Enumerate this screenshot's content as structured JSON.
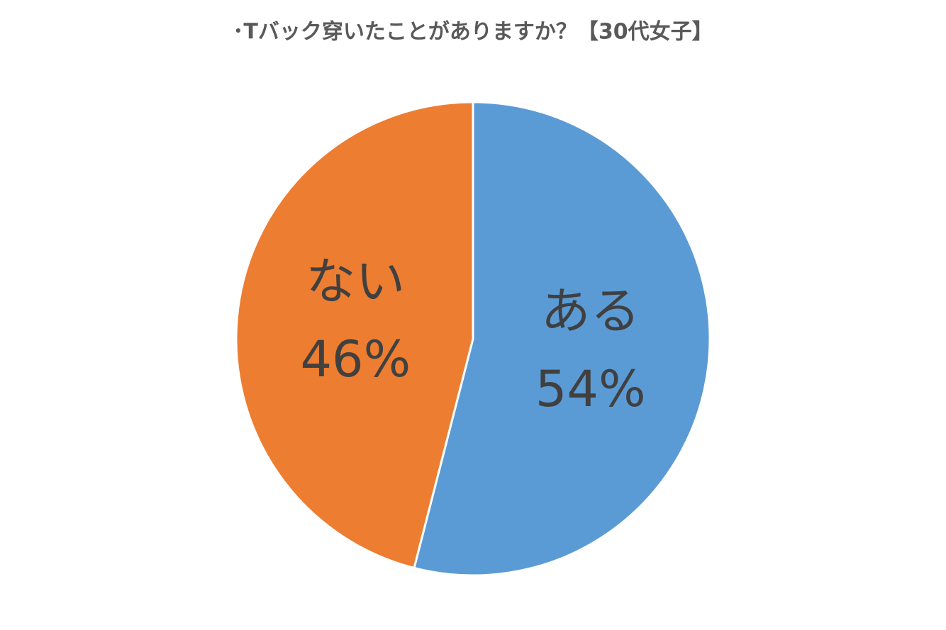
{
  "chart_data": {
    "type": "pie",
    "title": "･Tバック穿いたことがありますか？【30代女子】",
    "categories": [
      "ある",
      "ない"
    ],
    "values": [
      54,
      46
    ],
    "value_labels": [
      "54%",
      "46%"
    ],
    "colors": [
      "#5b9bd5",
      "#ed7d31"
    ]
  }
}
